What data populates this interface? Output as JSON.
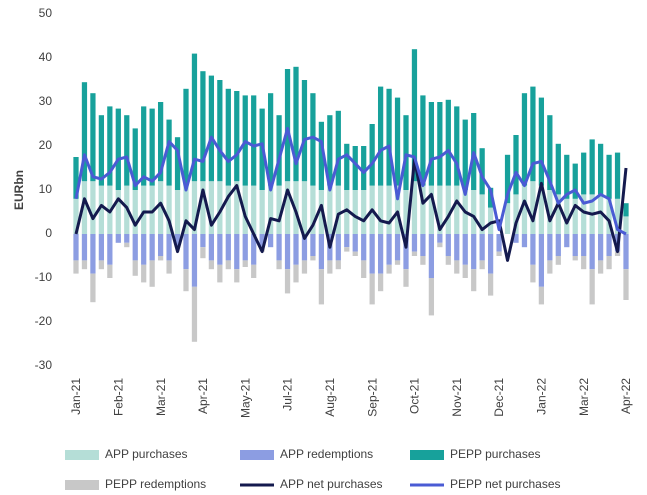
{
  "chart_data": {
    "type": "bar",
    "y_label": "EURbn",
    "categories": [
      "Jan-21",
      null,
      null,
      null,
      null,
      "Feb-21",
      null,
      null,
      null,
      null,
      "Mar-21",
      null,
      null,
      null,
      null,
      "Apr-21",
      null,
      null,
      null,
      null,
      "May-21",
      null,
      null,
      null,
      null,
      "Jul-21",
      null,
      null,
      null,
      null,
      "Aug-21",
      null,
      null,
      null,
      null,
      "Sep-21",
      null,
      null,
      null,
      null,
      "Oct-21",
      null,
      null,
      null,
      null,
      "Nov-21",
      null,
      null,
      null,
      null,
      "Dec-21",
      null,
      null,
      null,
      null,
      "Jan-22",
      null,
      null,
      null,
      null,
      "Mar-22",
      null,
      null,
      null,
      null,
      "Apr-22"
    ],
    "ylim": [
      -30,
      50
    ],
    "yticks": [
      -30,
      -20,
      -10,
      0,
      10,
      20,
      30,
      40,
      50
    ],
    "series": [
      {
        "name": "APP purchases",
        "type": "bar",
        "stack": "pos",
        "color": "#b5ded7",
        "values": [
          8,
          12,
          12,
          11,
          11,
          10,
          11,
          10,
          11,
          11,
          12,
          11,
          10,
          11,
          12,
          12,
          12,
          12,
          11,
          12,
          11,
          11,
          10,
          11,
          11,
          12,
          12,
          12,
          11,
          10,
          11,
          11,
          10,
          10,
          10,
          11,
          11,
          11,
          11,
          10,
          12,
          11,
          11,
          11,
          11,
          11,
          10,
          10,
          9,
          6,
          0,
          7,
          9,
          11,
          12,
          11,
          10,
          9,
          8,
          8,
          9,
          9,
          9,
          8,
          8,
          4
        ]
      },
      {
        "name": "APP redemptions",
        "type": "bar",
        "stack": "neg",
        "color": "#8c9de2",
        "values": [
          -6,
          -6,
          -9,
          -6,
          -7,
          -2,
          -2,
          -6,
          -7,
          -6,
          -5,
          -6,
          -3,
          -8,
          -12,
          -3,
          -6,
          -7,
          -6,
          -8,
          -6,
          -7,
          -3,
          -3,
          -6,
          -8,
          -7,
          -6,
          -5,
          -8,
          -6,
          -6,
          -3,
          -4,
          -6,
          -9,
          -9,
          -7,
          -6,
          -8,
          -4,
          -5,
          -10,
          -2,
          -5,
          -6,
          -7,
          -8,
          -6,
          -9,
          -4,
          0,
          -2,
          -3,
          -7,
          -12,
          -6,
          -5,
          -3,
          -5,
          -5,
          -8,
          -6,
          -5,
          -4,
          -8
        ]
      },
      {
        "name": "PEPP purchases",
        "type": "bar",
        "stack": "pos",
        "color": "#17a19b",
        "values": [
          9.5,
          22.5,
          20,
          16,
          18,
          18.5,
          16,
          14,
          18,
          17.5,
          18,
          15,
          12,
          22,
          29,
          25,
          24,
          23,
          22,
          20.5,
          20.5,
          20.5,
          18.5,
          21,
          16,
          25.5,
          26,
          23,
          21,
          15.5,
          16,
          17,
          10.5,
          10,
          10,
          14,
          22.5,
          22,
          20,
          17,
          30,
          20.5,
          19,
          19,
          19.5,
          18,
          16,
          17.5,
          10.5,
          4.5,
          0,
          11,
          13.5,
          21,
          21.5,
          20,
          17,
          11.5,
          10,
          8,
          9.5,
          12.5,
          11.5,
          10,
          10.5,
          3
        ]
      },
      {
        "name": "PEPP redemptions",
        "type": "bar",
        "stack": "neg",
        "color": "#c8c8c8",
        "values": [
          -3,
          -2,
          -6.5,
          -2,
          -3,
          0,
          -1,
          -3.5,
          -4,
          -6,
          -1,
          -3,
          0,
          -5,
          -12.5,
          -2.5,
          -2,
          -4,
          -2,
          -3,
          -1.5,
          -3,
          -1,
          0,
          -2,
          -5.5,
          -4,
          -3,
          -1,
          -8,
          -3,
          -2,
          -1,
          -1,
          -4,
          -7,
          -4,
          -2,
          -1,
          -4,
          -1,
          -2,
          -8.5,
          -1,
          -2,
          -3,
          -3,
          -5,
          -2,
          -5,
          -1,
          0,
          0,
          0,
          -4,
          -4,
          -3,
          -2,
          0,
          -1,
          -3,
          -8,
          -3,
          -3,
          -1,
          -7
        ]
      },
      {
        "name": "APP net purchases",
        "type": "line",
        "color": "#141a4e",
        "values": [
          0,
          8,
          3.5,
          6.5,
          5,
          8,
          6,
          2,
          5,
          5,
          7,
          3,
          -4,
          3,
          1,
          10,
          2,
          5,
          8.5,
          11,
          4,
          0,
          -4,
          3.5,
          3,
          10,
          5,
          -1,
          2,
          6.5,
          -3,
          4.5,
          5.5,
          4,
          3,
          5.5,
          3,
          2.5,
          5,
          -3,
          17,
          7,
          9,
          1,
          4,
          7.5,
          5,
          4,
          1,
          2.5,
          3,
          -6,
          2.5,
          7.5,
          3,
          11.5,
          3,
          7,
          2.5,
          6.5,
          5,
          4.5,
          5,
          3,
          -4,
          15
        ]
      },
      {
        "name": "PEPP net purchases",
        "type": "line",
        "color": "#4a5bd4",
        "values": [
          8,
          18,
          13,
          12.5,
          14,
          17,
          17.5,
          11,
          13,
          12,
          14,
          21,
          19,
          10,
          17,
          16.5,
          22,
          19,
          16.5,
          18,
          21,
          20,
          20.5,
          10,
          17,
          24,
          16,
          21.5,
          22,
          21,
          10,
          17,
          18,
          16,
          14,
          16,
          19,
          20,
          8,
          18,
          17.5,
          11,
          17,
          17.5,
          19,
          16,
          9,
          18.5,
          13,
          10,
          1,
          9,
          14,
          11,
          16,
          16.5,
          12,
          7,
          9,
          10,
          7,
          7.5,
          9,
          8,
          1,
          0
        ]
      }
    ]
  }
}
